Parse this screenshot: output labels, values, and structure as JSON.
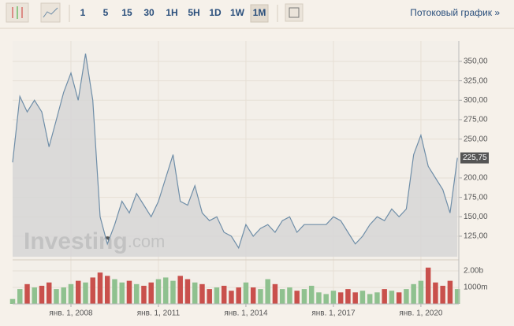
{
  "toolbar": {
    "intervals": [
      "1",
      "5",
      "15",
      "30",
      "1H",
      "5H",
      "1D",
      "1W",
      "1M"
    ],
    "active": "1M",
    "stream_link": "Потоковый график »"
  },
  "chart_data": {
    "type": "area",
    "watermark": [
      "Investing",
      ".com"
    ],
    "x": [
      2006.0,
      2006.25,
      2006.5,
      2006.75,
      2007.0,
      2007.25,
      2007.5,
      2007.75,
      2008.0,
      2008.25,
      2008.5,
      2008.75,
      2009.0,
      2009.25,
      2009.5,
      2009.75,
      2010.0,
      2010.25,
      2010.5,
      2010.75,
      2011.0,
      2011.25,
      2011.5,
      2011.75,
      2012.0,
      2012.25,
      2012.5,
      2012.75,
      2013.0,
      2013.25,
      2013.5,
      2013.75,
      2014.0,
      2014.25,
      2014.5,
      2014.75,
      2015.0,
      2015.25,
      2015.5,
      2015.75,
      2016.0,
      2016.25,
      2016.5,
      2016.75,
      2017.0,
      2017.25,
      2017.5,
      2017.75,
      2018.0,
      2018.25,
      2018.5,
      2018.75,
      2019.0,
      2019.25,
      2019.5,
      2019.75,
      2020.0,
      2020.25,
      2020.5,
      2020.75,
      2021.0,
      2021.25
    ],
    "series": [
      {
        "color": "#6f8ea8",
        "values": [
          220,
          305,
          285,
          300,
          285,
          240,
          275,
          310,
          335,
          300,
          360,
          300,
          150,
          115,
          140,
          170,
          155,
          180,
          165,
          150,
          170,
          200,
          230,
          170,
          165,
          190,
          155,
          145,
          150,
          130,
          125,
          110,
          140,
          125,
          135,
          140,
          130,
          145,
          150,
          130,
          140,
          140,
          140,
          140,
          150,
          145,
          130,
          115,
          125,
          140,
          150,
          145,
          160,
          150,
          160,
          230,
          255,
          215,
          200,
          185,
          155,
          225.75
        ]
      }
    ],
    "last_price_label": "225,75",
    "xlim": [
      2006.0,
      2021.3
    ],
    "xticks": [
      {
        "value": 2008,
        "label": "янв. 1, 2008"
      },
      {
        "value": 2011,
        "label": "янв. 1, 2011"
      },
      {
        "value": 2014,
        "label": "янв. 1, 2014"
      },
      {
        "value": 2017,
        "label": "янв. 1, 2017"
      },
      {
        "value": 2020,
        "label": "янв. 1, 2020"
      }
    ],
    "ylim": [
      98.6,
      376.3
    ],
    "yticks": [
      {
        "value": 125,
        "label": "125,00"
      },
      {
        "value": 150,
        "label": "150,00"
      },
      {
        "value": 175,
        "label": "175,00"
      },
      {
        "value": 200,
        "label": "200,00"
      },
      {
        "value": 250,
        "label": "250,00"
      },
      {
        "value": 275,
        "label": "275,00"
      },
      {
        "value": 300,
        "label": "300,00"
      },
      {
        "value": 325,
        "label": "325,00"
      },
      {
        "value": 350,
        "label": "350,00"
      }
    ],
    "grid": true,
    "volume": {
      "up_color": "#8fc18f",
      "down_color": "#c9504c",
      "ylim": [
        0,
        2430
      ],
      "yticks": [
        {
          "value": 1000,
          "label": "1000m"
        },
        {
          "value": 2000,
          "label": "2.00b"
        }
      ],
      "values": [
        300,
        900,
        1200,
        1000,
        1100,
        1300,
        900,
        1000,
        1200,
        1400,
        1300,
        1600,
        1900,
        1700,
        1500,
        1300,
        1400,
        1200,
        1100,
        1300,
        1500,
        1600,
        1400,
        1700,
        1500,
        1300,
        1200,
        900,
        1000,
        1100,
        800,
        1000,
        1300,
        1000,
        900,
        1500,
        1200,
        900,
        1000,
        800,
        900,
        1100,
        700,
        600,
        800,
        700,
        900,
        700,
        800,
        600,
        700,
        900,
        800,
        700,
        900,
        1200,
        1400,
        2200,
        1300,
        1100,
        1400,
        900
      ]
    }
  }
}
